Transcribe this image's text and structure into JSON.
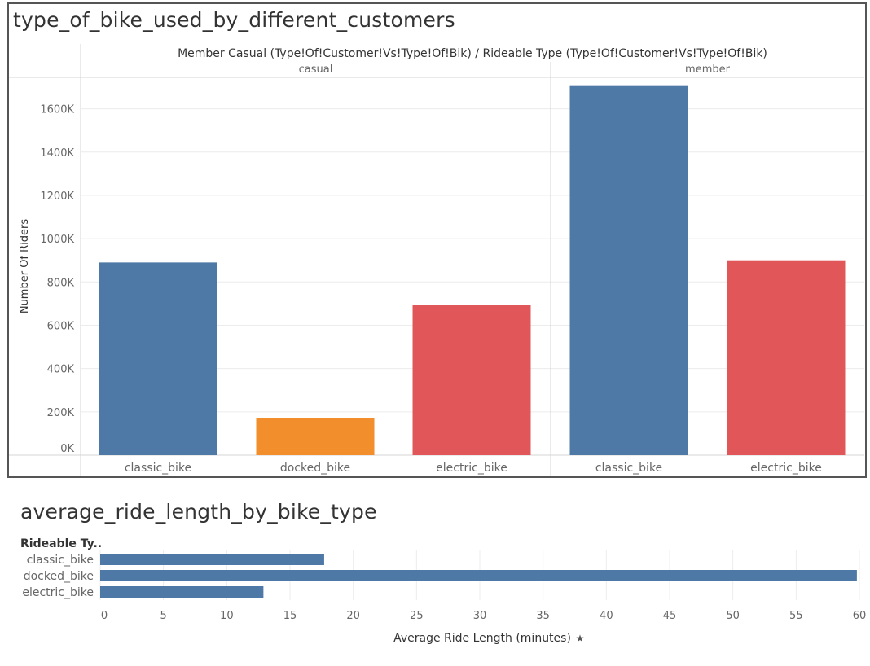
{
  "chart_data": [
    {
      "type": "bar",
      "title": "type_of_bike_used_by_different_customers",
      "header": "Member Casual (Type!Of!Customer!Vs!Type!Of!Bik)  /  Rideable Type (Type!Of!Customer!Vs!Type!Of!Bik)",
      "ylabel": "Number Of Riders",
      "ylim": [
        0,
        1700000
      ],
      "yticks": [
        0,
        200000,
        400000,
        600000,
        800000,
        1000000,
        1200000,
        1400000,
        1600000
      ],
      "ytick_labels": [
        "0K",
        "200K",
        "400K",
        "600K",
        "800K",
        "1000K",
        "1200K",
        "1400K",
        "1600K"
      ],
      "grid": true,
      "panels": [
        {
          "name": "casual",
          "bars": [
            {
              "category": "classic_bike",
              "value": 890000,
              "color": "#4e79a7"
            },
            {
              "category": "docked_bike",
              "value": 172000,
              "color": "#f28e2b"
            },
            {
              "category": "electric_bike",
              "value": 692000,
              "color": "#e15759"
            }
          ]
        },
        {
          "name": "member",
          "bars": [
            {
              "category": "classic_bike",
              "value": 1705000,
              "color": "#4e79a7"
            },
            {
              "category": "electric_bike",
              "value": 900000,
              "color": "#e15759"
            }
          ]
        }
      ]
    },
    {
      "type": "bar",
      "orientation": "horizontal",
      "title": "average_ride_length_by_bike_type",
      "row_header": "Rideable Ty..",
      "categories": [
        "classic_bike",
        "docked_bike",
        "electric_bike"
      ],
      "values": [
        17.7,
        59.8,
        12.9
      ],
      "color": "#4e79a7",
      "xlabel": "Average Ride Length (minutes)",
      "xlim": [
        0,
        60
      ],
      "xticks": [
        0,
        5,
        10,
        15,
        20,
        25,
        30,
        35,
        40,
        45,
        50,
        55,
        60
      ],
      "grid": true
    }
  ],
  "colors": {
    "frame": "#555555",
    "grid": "#ececec",
    "divider": "#d4d4d4",
    "tick_text": "#666666"
  }
}
